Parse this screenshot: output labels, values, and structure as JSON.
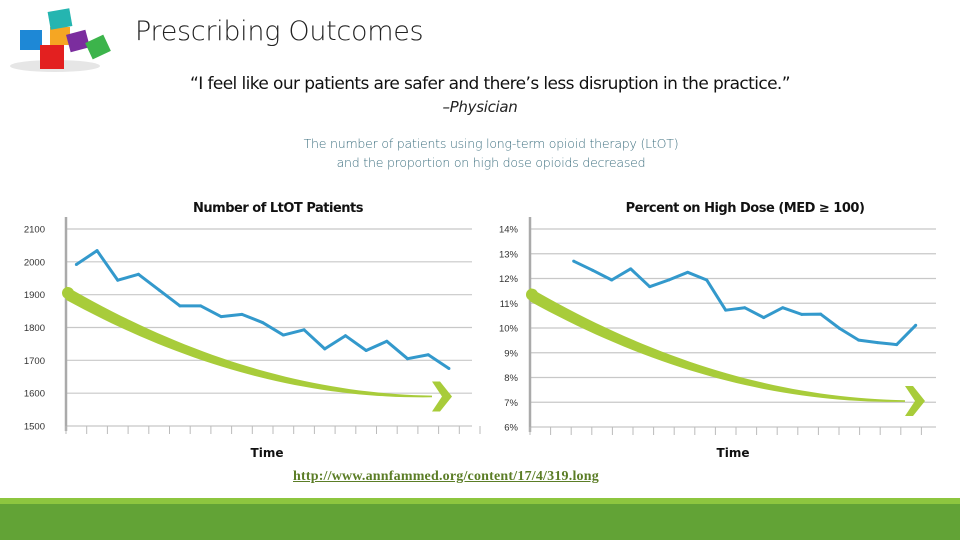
{
  "slide": {
    "title": "Prescribing Outcomes",
    "quote": "“I feel like our patients are safer and there’s less disruption in the practice.”",
    "attribution": "–Physician",
    "subtitle_line1": "The number of patients using long-term opioid therapy (LtOT)",
    "subtitle_line2": "and the proportion on high dose opioids decreased",
    "link": "http://www.annfammed.org/content/17/4/319.long",
    "logo": "colored-cubes-logo"
  },
  "colors": {
    "series": "#3399cc",
    "trend_arrow": "#a8cc3a",
    "band_light": "#8dc63f",
    "band_dark": "#62a336",
    "link": "#5b7d26"
  },
  "chart_data": [
    {
      "type": "line",
      "title": "Number of LtOT Patients",
      "xlabel": "Time",
      "ylabel": "",
      "ylim": [
        1500,
        2100
      ],
      "yticks": [
        "2100",
        "2000",
        "1900",
        "1800",
        "1700",
        "1600",
        "1500"
      ],
      "ytick_values": [
        2100,
        2000,
        1900,
        1800,
        1700,
        1600,
        1500
      ],
      "grid": true,
      "values": [
        1992,
        2034,
        1944,
        1962,
        1914,
        1866,
        1866,
        1833,
        1840,
        1815,
        1777,
        1793,
        1735,
        1775,
        1730,
        1758,
        1705,
        1717,
        1675
      ],
      "trend": {
        "type": "decreasing-arrow",
        "start": 1905,
        "end": 1590
      }
    },
    {
      "type": "line",
      "title": "Percent on High Dose (MED ≥ 100)",
      "xlabel": "Time",
      "ylabel": "",
      "ylim": [
        6,
        14
      ],
      "yticks": [
        "14%",
        "13%",
        "12%",
        "11%",
        "10%",
        "9%",
        "8%",
        "7%",
        "6%"
      ],
      "ytick_values": [
        14,
        13,
        12,
        11,
        10,
        9,
        8,
        7,
        6
      ],
      "grid": true,
      "values": [
        12.7,
        12.33,
        11.94,
        12.39,
        11.67,
        11.94,
        12.25,
        11.94,
        10.72,
        10.82,
        10.42,
        10.82,
        10.55,
        10.56,
        9.98,
        9.51,
        9.41,
        9.33,
        10.11
      ],
      "trend": {
        "type": "decreasing-arrow",
        "start": 11.35,
        "end": 7.05
      }
    }
  ]
}
